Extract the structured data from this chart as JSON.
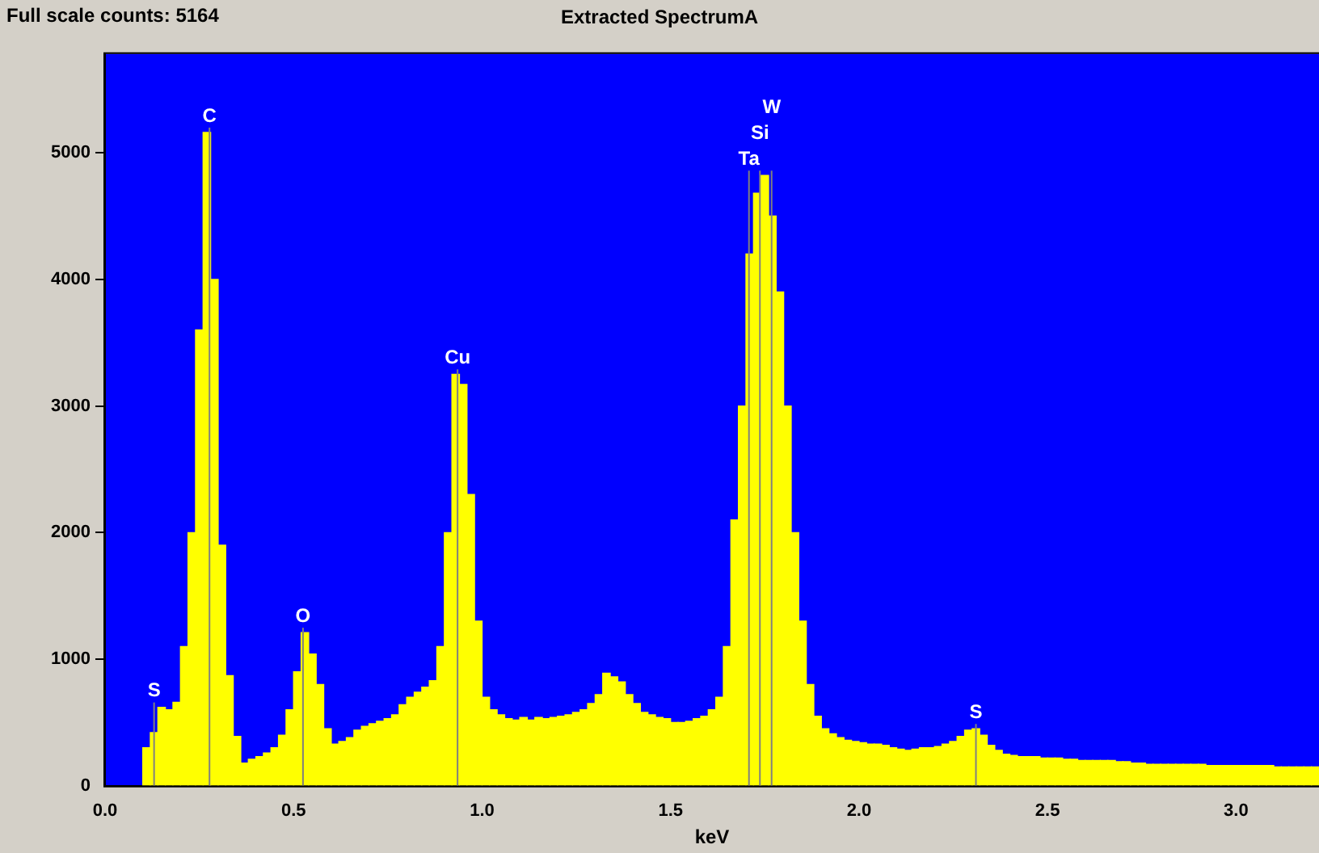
{
  "chart_data": {
    "type": "histogram",
    "title": "Extracted SpectrumA",
    "xlabel": "keV",
    "annotations": [
      "Full scale counts: 5164"
    ],
    "bins": [
      0.1,
      0.12,
      0.14,
      0.16,
      0.18,
      0.2,
      0.22,
      0.24,
      0.26,
      0.28,
      0.3,
      0.32,
      0.34,
      0.36,
      0.38,
      0.4,
      0.42,
      0.44,
      0.46,
      0.48,
      0.5,
      0.52,
      0.54,
      0.56,
      0.58,
      0.6,
      0.62,
      0.64,
      0.66,
      0.68,
      0.7,
      0.72,
      0.74,
      0.76,
      0.78,
      0.8,
      0.82,
      0.84,
      0.86,
      0.88,
      0.9,
      0.92,
      0.94,
      0.96,
      0.98,
      1.0,
      1.02,
      1.04,
      1.06,
      1.08,
      1.1,
      1.12,
      1.14,
      1.16,
      1.18,
      1.2,
      1.22,
      1.24,
      1.26,
      1.28,
      1.3,
      1.32,
      1.34,
      1.36,
      1.38,
      1.4,
      1.42,
      1.44,
      1.46,
      1.48,
      1.5,
      1.52,
      1.54,
      1.56,
      1.58,
      1.6,
      1.62,
      1.64,
      1.66,
      1.68,
      1.7,
      1.72,
      1.74,
      1.76,
      1.78,
      1.8,
      1.82,
      1.84,
      1.86,
      1.88,
      1.9,
      1.92,
      1.94,
      1.96,
      1.98,
      2.0,
      2.02,
      2.04,
      2.06,
      2.08,
      2.1,
      2.12,
      2.14,
      2.16,
      2.18,
      2.2,
      2.22,
      2.24,
      2.26,
      2.28,
      2.3,
      2.32,
      2.34,
      2.36,
      2.38,
      2.4,
      2.42,
      2.44,
      2.46,
      2.48,
      2.5,
      2.52,
      2.54,
      2.56,
      2.58,
      2.6,
      2.62,
      2.64,
      2.66,
      2.68,
      2.7,
      2.72,
      2.74,
      2.76,
      2.78,
      2.8,
      2.82,
      2.84,
      2.86,
      2.88,
      2.9,
      2.92,
      2.94,
      2.96,
      2.98,
      3.0,
      3.02,
      3.04,
      3.06,
      3.08,
      3.1,
      3.12,
      3.14,
      3.16,
      3.18,
      3.2,
      3.22
    ],
    "values": [
      300,
      420,
      620,
      600,
      660,
      1100,
      2000,
      3600,
      5160,
      4000,
      1900,
      870,
      390,
      180,
      210,
      230,
      260,
      300,
      400,
      600,
      900,
      1210,
      1040,
      800,
      450,
      330,
      350,
      380,
      440,
      470,
      490,
      510,
      530,
      560,
      640,
      700,
      740,
      780,
      830,
      1100,
      2000,
      3250,
      3170,
      2300,
      1300,
      700,
      600,
      560,
      530,
      520,
      540,
      520,
      540,
      530,
      540,
      550,
      560,
      580,
      600,
      650,
      720,
      890,
      860,
      820,
      720,
      650,
      580,
      560,
      540,
      530,
      500,
      500,
      510,
      530,
      550,
      600,
      700,
      1100,
      2100,
      3000,
      4200,
      4680,
      4820,
      4500,
      3900,
      3000,
      2000,
      1300,
      800,
      550,
      450,
      410,
      380,
      360,
      350,
      340,
      330,
      330,
      320,
      300,
      290,
      280,
      290,
      300,
      300,
      310,
      330,
      350,
      390,
      440,
      450,
      400,
      320,
      280,
      250,
      240,
      230,
      230,
      230,
      220,
      220,
      220,
      210,
      210,
      200,
      200,
      200,
      200,
      200,
      190,
      190,
      180,
      180,
      170,
      170,
      170,
      170,
      170,
      170,
      170,
      170,
      160,
      160,
      160,
      160,
      160,
      160,
      160,
      160,
      160,
      150,
      150,
      150,
      150,
      150,
      150
    ],
    "color": "#ffff00",
    "xlim": [
      0,
      3.22
    ],
    "xticks": [
      {
        "value": 0,
        "label": "0.0"
      },
      {
        "value": 0.5,
        "label": "0.5"
      },
      {
        "value": 1,
        "label": "1.0"
      },
      {
        "value": 1.5,
        "label": "1.5"
      },
      {
        "value": 2,
        "label": "2.0"
      },
      {
        "value": 2.5,
        "label": "2.5"
      },
      {
        "value": 3,
        "label": "3.0"
      }
    ],
    "ylim": [
      0,
      5780
    ],
    "yticks": [
      0,
      1000,
      2000,
      3000,
      4000,
      5000
    ],
    "ref_lines": [
      {
        "axis": "x",
        "value": 0.13,
        "label": "S",
        "color": "#808080"
      },
      {
        "axis": "x",
        "value": 0.277,
        "label": "C",
        "color": "#808080"
      },
      {
        "axis": "x",
        "value": 0.525,
        "label": "O",
        "color": "#808080"
      },
      {
        "axis": "x",
        "value": 0.935,
        "label": "Cu",
        "color": "#808080"
      },
      {
        "axis": "x",
        "value": 1.708,
        "label": "Ta",
        "color": "#808080"
      },
      {
        "axis": "x",
        "value": 1.737,
        "label": "Si",
        "color": "#808080"
      },
      {
        "axis": "x",
        "value": 1.768,
        "label": "W",
        "color": "#808080"
      },
      {
        "axis": "x",
        "value": 2.31,
        "label": "S",
        "color": "#808080"
      }
    ],
    "grid": false,
    "legend": false
  }
}
